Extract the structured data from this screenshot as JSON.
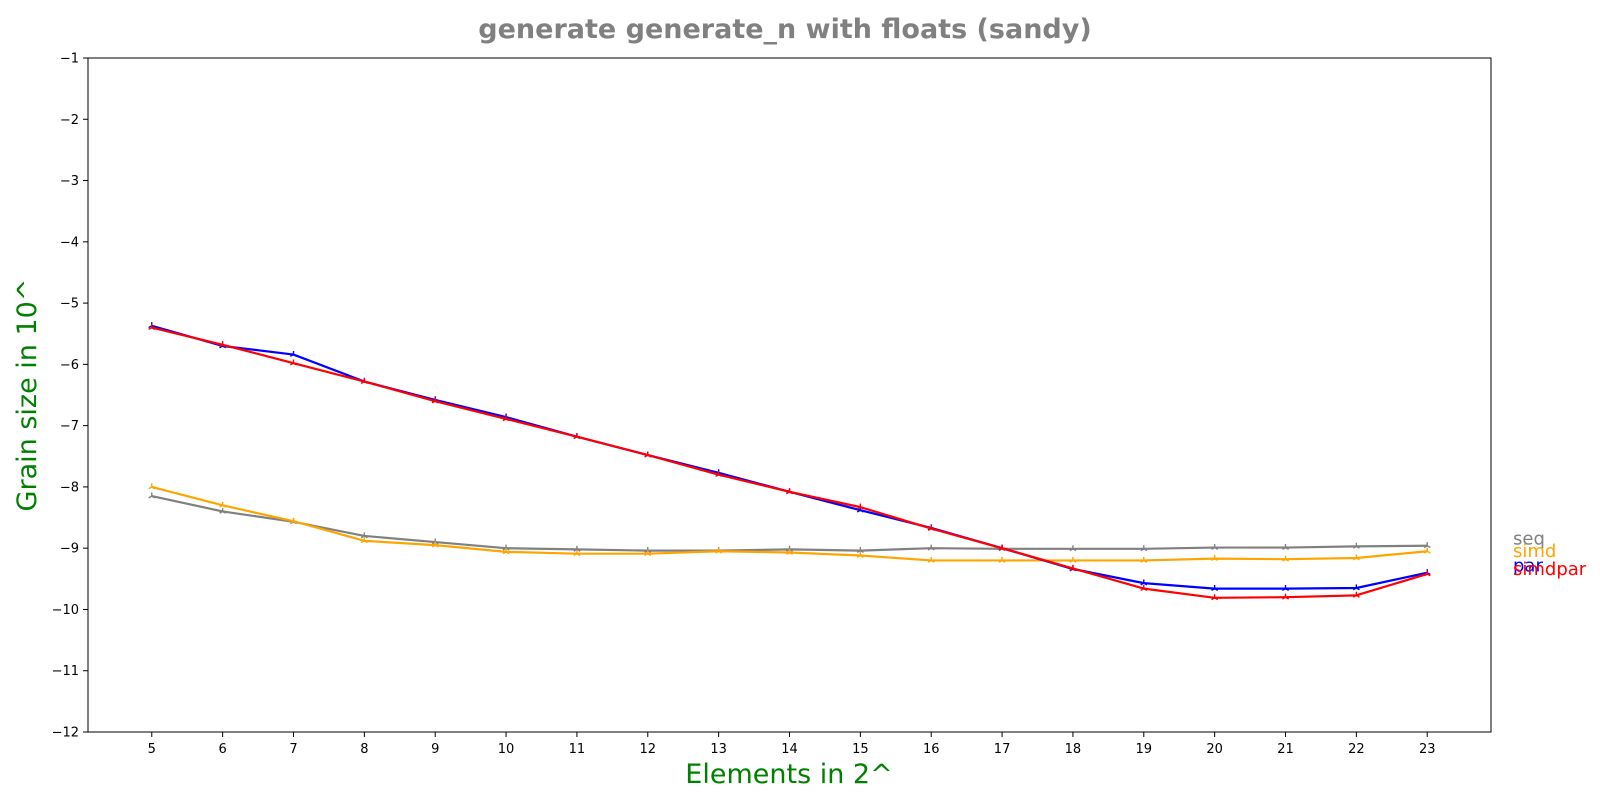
{
  "chart_data": {
    "type": "line",
    "title": "generate generate_n with floats  (sandy)",
    "xlabel": "Elements in 2^",
    "ylabel": "Grain size in 10^",
    "x": [
      5,
      6,
      7,
      8,
      9,
      10,
      11,
      12,
      13,
      14,
      15,
      16,
      17,
      18,
      19,
      20,
      21,
      22,
      23
    ],
    "xlim": [
      4.1,
      23.9
    ],
    "ylim": [
      -12,
      -1
    ],
    "xticks": [
      "5",
      "6",
      "7",
      "8",
      "9",
      "10",
      "11",
      "12",
      "13",
      "14",
      "15",
      "16",
      "17",
      "18",
      "19",
      "20",
      "21",
      "22",
      "23"
    ],
    "yticks": [
      "−1",
      "−2",
      "−3",
      "−4",
      "−5",
      "−6",
      "−7",
      "−8",
      "−9",
      "−10",
      "−11",
      "−12"
    ],
    "legend_placement": "right, outside plot",
    "grid": false,
    "series": [
      {
        "name": "seq",
        "color": "#808080",
        "values": [
          -8.15,
          -8.4,
          -8.57,
          -8.8,
          -8.9,
          -9.0,
          -9.02,
          -9.04,
          -9.04,
          -9.02,
          -9.04,
          -9.0,
          -9.01,
          -9.01,
          -9.01,
          -8.99,
          -8.99,
          -8.97,
          -8.96
        ]
      },
      {
        "name": "simd",
        "color": "#FFA500",
        "values": [
          -8.0,
          -8.3,
          -8.56,
          -8.88,
          -8.95,
          -9.06,
          -9.09,
          -9.09,
          -9.05,
          -9.07,
          -9.12,
          -9.2,
          -9.2,
          -9.2,
          -9.2,
          -9.17,
          -9.18,
          -9.16,
          -9.05
        ]
      },
      {
        "name": "par",
        "color": "#0000FF",
        "values": [
          -5.37,
          -5.7,
          -5.84,
          -6.28,
          -6.58,
          -6.86,
          -7.18,
          -7.48,
          -7.77,
          -8.08,
          -8.38,
          -8.67,
          -9.0,
          -9.34,
          -9.57,
          -9.66,
          -9.66,
          -9.65,
          -9.4
        ]
      },
      {
        "name": "simdpar",
        "color": "#FF0000",
        "values": [
          -5.4,
          -5.68,
          -5.98,
          -6.28,
          -6.6,
          -6.89,
          -7.18,
          -7.48,
          -7.8,
          -8.08,
          -8.33,
          -8.68,
          -9.0,
          -9.33,
          -9.66,
          -9.81,
          -9.8,
          -9.77,
          -9.42
        ]
      }
    ]
  }
}
